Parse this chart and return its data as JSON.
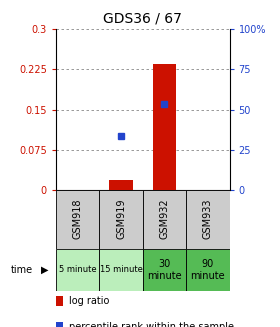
{
  "title": "GDS36 / 67",
  "samples": [
    "GSM918",
    "GSM919",
    "GSM932",
    "GSM933"
  ],
  "time_labels": [
    "5 minute",
    "15 minute",
    "30\nminute",
    "90\nminute"
  ],
  "time_colors_light": "#bbeebb",
  "time_colors_dark": "#55bb55",
  "time_dark_indices": [
    2,
    3
  ],
  "log_ratio": [
    0.0,
    0.018,
    0.235,
    0.0
  ],
  "percentile": [
    null,
    0.1,
    0.16,
    null
  ],
  "ylim_left": [
    0,
    0.3
  ],
  "ylim_right": [
    0,
    100
  ],
  "yticks_left": [
    0,
    0.075,
    0.15,
    0.225,
    0.3
  ],
  "yticks_right": [
    0,
    25,
    50,
    75,
    100
  ],
  "ytick_labels_left": [
    "0",
    "0.075",
    "0.15",
    "0.225",
    "0.3"
  ],
  "ytick_labels_right": [
    "0",
    "25",
    "50",
    "75",
    "100%"
  ],
  "bar_color": "#cc1100",
  "dot_color": "#2244cc",
  "bar_width": 0.55,
  "grid_color": "#888888",
  "bg_color": "#ffffff",
  "header_bg": "#cccccc",
  "legend_bar_label": "log ratio",
  "legend_dot_label": "percentile rank within the sample"
}
